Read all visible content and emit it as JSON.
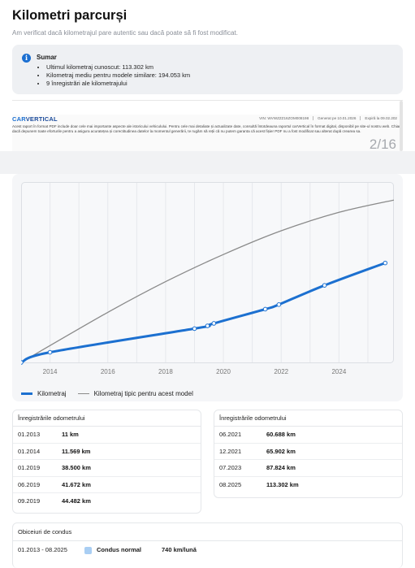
{
  "page": {
    "title": "Kilometri parcurși",
    "subtitle": "Am verificat dacă kilometrajul pare autentic sau dacă poate să fi fost modificat."
  },
  "summary": {
    "icon": "info-icon",
    "title": "Sumar",
    "items": [
      "Ultimul kilometraj cunoscut: 113.302 km",
      "Kilometraj mediu pentru modele similare: 194.053 km",
      "9 înregistrări ale kilometrajului"
    ]
  },
  "report": {
    "logo_left": "CAR",
    "logo_right": "VERTICAL",
    "vin": "VIN: WVWZZZ16ZOM008198",
    "generated": "Generat pe 10.01.2026",
    "expires": "Expiră la 09.02.202",
    "disclaimer": "Acest raport în format PDF include doar cele mai importante aspecte ale istoricului vehiculului. Pentru cele mai detaliate și actualizate date, consultă întotdeauna raportul carVertical în format digital, disponibil pe site-ul nostru web. Chiar dacă depunem toate eforturile pentru a asigura acuratețea și corectitudinea datelor la momentul generării, te rugăm să reții că nu putem garanta că acest fișier PDF nu a fost modificat sau alterat după crearea sa.",
    "page_counter": "2/16"
  },
  "chart_data": {
    "type": "line",
    "x_ticks": [
      "2014",
      "2016",
      "2018",
      "2020",
      "2022",
      "2024"
    ],
    "xlim": [
      2013.0,
      2025.9
    ],
    "ylim": [
      0,
      200000
    ],
    "grid": true,
    "legend_position": "bottom-left",
    "series": [
      {
        "name": "Kilometraj",
        "color": "#1c70d0",
        "points": [
          {
            "x": 2013.0,
            "y": 11
          },
          {
            "x": 2014.0,
            "y": 11569
          },
          {
            "x": 2019.0,
            "y": 38500
          },
          {
            "x": 2019.45,
            "y": 41672
          },
          {
            "x": 2019.67,
            "y": 44482
          },
          {
            "x": 2021.45,
            "y": 60688
          },
          {
            "x": 2021.92,
            "y": 65902
          },
          {
            "x": 2023.5,
            "y": 87824
          },
          {
            "x": 2025.6,
            "y": 113302
          }
        ]
      },
      {
        "name": "Kilometraj tipic pentru acest model",
        "color": "#8a8a8a",
        "points": [
          {
            "x": 2013.0,
            "y": 0
          },
          {
            "x": 2016.0,
            "y": 57000
          },
          {
            "x": 2018.0,
            "y": 92000
          },
          {
            "x": 2020.0,
            "y": 123000
          },
          {
            "x": 2022.0,
            "y": 150000
          },
          {
            "x": 2024.0,
            "y": 171000
          },
          {
            "x": 2025.9,
            "y": 185000
          }
        ]
      }
    ]
  },
  "records_left": {
    "title": "Înregistrările odometrului",
    "rows": [
      {
        "date": "01.2013",
        "value": "11 km"
      },
      {
        "date": "01.2014",
        "value": "11.569 km"
      },
      {
        "date": "01.2019",
        "value": "38.500 km"
      },
      {
        "date": "06.2019",
        "value": "41.672 km"
      },
      {
        "date": "09.2019",
        "value": "44.482 km"
      }
    ]
  },
  "records_right": {
    "title": "Înregistrările odometrului",
    "rows": [
      {
        "date": "06.2021",
        "value": "60.688 km"
      },
      {
        "date": "12.2021",
        "value": "65.902 km"
      },
      {
        "date": "07.2023",
        "value": "87.824 km"
      },
      {
        "date": "08.2025",
        "value": "113.302 km"
      }
    ]
  },
  "habits": {
    "title": "Obiceiuri de condus",
    "period": "01.2013 - 08.2025",
    "style": "Condus normal",
    "rate": "740 km/lună",
    "chip_color": "#a9cef3"
  }
}
